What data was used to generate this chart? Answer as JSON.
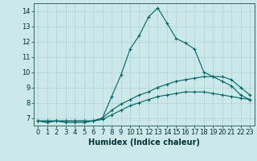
{
  "xlabel": "Humidex (Indice chaleur)",
  "ylabel": "",
  "bg_color": "#cce8e8",
  "line_color": "#006666",
  "xlim": [
    -0.5,
    23.5
  ],
  "ylim": [
    6.5,
    14.5
  ],
  "yticks": [
    7,
    8,
    9,
    10,
    11,
    12,
    13,
    14
  ],
  "xticks": [
    0,
    1,
    2,
    3,
    4,
    5,
    6,
    7,
    8,
    9,
    10,
    11,
    12,
    13,
    14,
    15,
    16,
    17,
    18,
    19,
    20,
    21,
    22,
    23
  ],
  "series": [
    [
      6.8,
      6.7,
      6.8,
      6.7,
      6.7,
      6.7,
      6.8,
      7.0,
      8.4,
      9.8,
      11.5,
      12.4,
      13.6,
      14.2,
      13.2,
      12.2,
      11.9,
      11.5,
      10.0,
      9.7,
      9.4,
      9.1,
      8.5,
      8.2
    ],
    [
      6.8,
      6.8,
      6.8,
      6.8,
      6.8,
      6.8,
      6.8,
      7.0,
      7.5,
      7.9,
      8.2,
      8.5,
      8.7,
      9.0,
      9.2,
      9.4,
      9.5,
      9.6,
      9.7,
      9.7,
      9.7,
      9.5,
      9.0,
      8.5
    ],
    [
      6.8,
      6.8,
      6.8,
      6.8,
      6.8,
      6.8,
      6.8,
      6.9,
      7.2,
      7.5,
      7.8,
      8.0,
      8.2,
      8.4,
      8.5,
      8.6,
      8.7,
      8.7,
      8.7,
      8.6,
      8.5,
      8.4,
      8.3,
      8.2
    ]
  ],
  "grid_color": "#aacccc",
  "spine_color": "#336666",
  "tick_label_size": 6,
  "xlabel_size": 7,
  "marker": "+",
  "markersize": 3,
  "linewidth": 0.8
}
